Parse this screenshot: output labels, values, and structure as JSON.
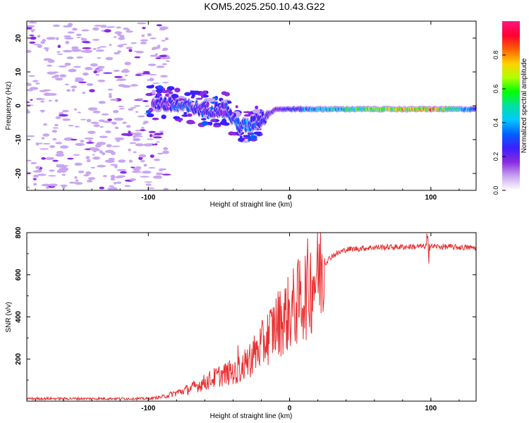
{
  "title": "KOM5.2025.250.10.43.G22",
  "chart_data": [
    {
      "type": "heatmap",
      "name": "spectrogram",
      "xlabel": "Height of straight line (km)",
      "ylabel": "Frequency (Hz)",
      "xlim": [
        -186,
        132
      ],
      "ylim": [
        -25,
        25
      ],
      "xticks": [
        -100,
        0,
        100
      ],
      "yticks": [
        -20,
        -10,
        0,
        10,
        20
      ],
      "ridge": {
        "description_x": [
          -95,
          -80,
          -60,
          -45,
          -40,
          -35,
          -30,
          -20,
          -10,
          0,
          20,
          60,
          100,
          132
        ],
        "frequency_hz": [
          1,
          0,
          -1,
          -1,
          -4,
          -6,
          -6,
          -4,
          -1,
          -1,
          -1,
          -1,
          -1,
          -1
        ],
        "peak_amplitude": [
          0.25,
          0.35,
          0.3,
          0.3,
          0.35,
          0.4,
          0.4,
          0.3,
          0.25,
          0.3,
          0.5,
          0.7,
          0.95,
          0.3
        ]
      }
    },
    {
      "type": "line",
      "name": "snr",
      "xlabel": "Height of straight line (km)",
      "ylabel": "SNR (v/v)",
      "xlim": [
        -186,
        132
      ],
      "ylim": [
        0,
        800
      ],
      "xticks": [
        -100,
        0,
        100
      ],
      "yticks": [
        200,
        400,
        600,
        800
      ],
      "envelope_x": [
        -186,
        -100,
        -90,
        -70,
        -50,
        -35,
        -20,
        -10,
        0,
        10,
        20,
        30,
        40,
        60,
        100,
        132
      ],
      "envelope_y": [
        12,
        12,
        20,
        60,
        120,
        150,
        260,
        360,
        420,
        500,
        620,
        690,
        720,
        730,
        735,
        728
      ]
    }
  ],
  "colorbar": {
    "label": "Normalized spectral amplitude",
    "ticks": [
      "0.0",
      "0.2",
      "0.4",
      "0.6",
      "0.8"
    ],
    "colors": [
      "#ffffff",
      "#c8a6f0",
      "#8a2be2",
      "#3d1fff",
      "#0060ff",
      "#00c8ff",
      "#00e0a0",
      "#00ff00",
      "#b0ff00",
      "#ffd000",
      "#ff6000",
      "#ff0030",
      "#ff1880"
    ]
  },
  "snr_color": "#e83030"
}
